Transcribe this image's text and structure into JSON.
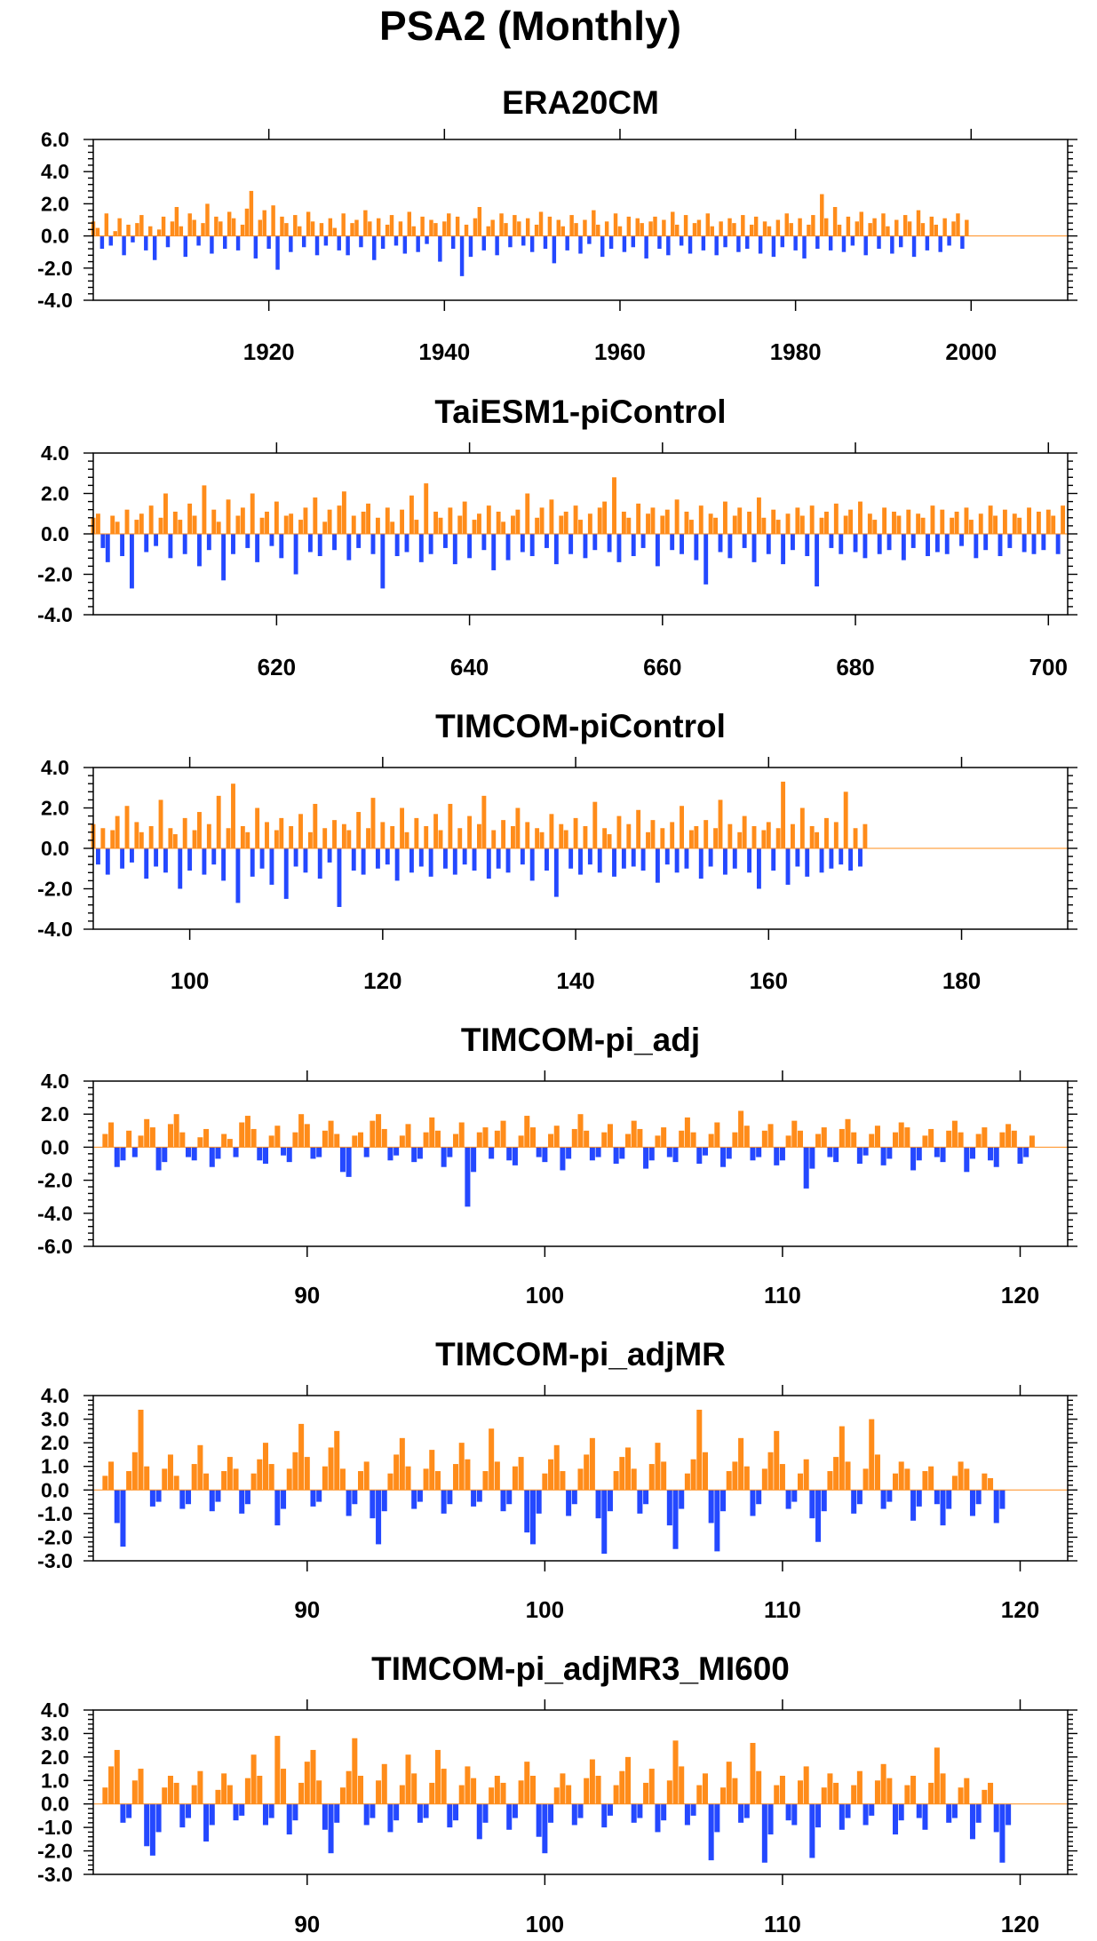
{
  "figure": {
    "title": "PSA2 (Monthly)"
  },
  "colors": {
    "positive": "#ff8c1a",
    "negative": "#2448ff",
    "axis": "#000000"
  },
  "chart_data": [
    {
      "type": "bar",
      "title": "ERA20CM",
      "xlabel": "",
      "ylabel": "",
      "xlim": [
        1900,
        2011
      ],
      "ylim": [
        -4.0,
        6.0
      ],
      "yticks": [
        -4.0,
        -2.0,
        0.0,
        2.0,
        4.0,
        6.0
      ],
      "ytick_labels": [
        "-4.0",
        "-2.0",
        "0.0",
        "2.0",
        "4.0",
        "6.0"
      ],
      "xticks": [
        1920,
        1940,
        1960,
        1980,
        2000
      ],
      "xtick_labels": [
        "1920",
        "1940",
        "1960",
        "1980",
        "2000"
      ],
      "positive_color": "#ff8c1a",
      "negative_color": "#2448ff",
      "x_start": 1900,
      "x_step": 0.5,
      "values": [
        0.9,
        0.5,
        -0.8,
        1.4,
        -0.6,
        0.3,
        1.1,
        -1.2,
        0.7,
        -0.4,
        0.8,
        1.3,
        -0.9,
        0.6,
        -1.5,
        0.4,
        1.2,
        -0.7,
        0.9,
        1.8,
        0.6,
        -1.3,
        1.4,
        1.0,
        -0.6,
        0.8,
        2.0,
        -1.1,
        1.2,
        0.9,
        -0.8,
        1.5,
        1.1,
        -0.9,
        0.7,
        1.7,
        2.8,
        -1.4,
        1.0,
        1.6,
        -0.8,
        1.9,
        -2.1,
        1.2,
        0.8,
        -1.0,
        1.3,
        0.6,
        -0.7,
        1.5,
        0.9,
        -1.2,
        0.8,
        -0.6,
        1.1,
        0.5,
        -0.9,
        1.4,
        -1.2,
        0.8,
        1.0,
        -0.7,
        1.6,
        0.9,
        -1.5,
        1.1,
        -0.8,
        0.7,
        1.3,
        -0.6,
        0.9,
        -1.1,
        1.5,
        0.6,
        -1.0,
        1.2,
        -0.5,
        1.0,
        0.8,
        -1.6,
        0.9,
        1.4,
        -0.8,
        1.2,
        -2.5,
        0.7,
        -1.3,
        1.1,
        1.8,
        -0.9,
        0.6,
        1.0,
        -1.2,
        1.4,
        0.8,
        -0.7,
        1.3,
        0.9,
        -0.6,
        1.1,
        -1.0,
        0.7,
        1.5,
        -0.8,
        1.2,
        -1.7,
        1.0,
        0.6,
        -0.9,
        1.3,
        0.8,
        -1.1,
        1.0,
        -0.5,
        1.6,
        0.7,
        -1.3,
        0.9,
        -0.8,
        1.4,
        0.6,
        -1.0,
        1.2,
        -0.7,
        1.1,
        0.8,
        -1.4,
        0.9,
        1.2,
        -0.8,
        1.0,
        -1.2,
        1.5,
        0.7,
        -0.6,
        1.3,
        -1.1,
        0.8,
        1.0,
        -0.9,
        1.4,
        0.6,
        -1.2,
        0.9,
        -0.7,
        1.1,
        0.8,
        -1.0,
        1.3,
        -0.8,
        0.7,
        1.2,
        -1.1,
        0.9,
        0.6,
        -1.3,
        1.0,
        -0.7,
        1.4,
        0.8,
        -0.9,
        1.1,
        -1.4,
        0.7,
        1.3,
        -0.8,
        2.6,
        1.1,
        -0.9,
        1.8,
        0.7,
        -1.0,
        1.2,
        -0.6,
        0.9,
        1.5,
        -1.2,
        0.8,
        1.1,
        -0.8,
        1.4,
        0.6,
        -1.1,
        1.0,
        -0.7,
        1.3,
        0.9,
        -1.3,
        1.6,
        0.8,
        -0.9,
        1.2,
        0.7,
        -1.0,
        1.1,
        -0.6,
        0.9,
        1.4,
        -0.8,
        1.0
      ]
    },
    {
      "type": "bar",
      "title": "TaiESM1-piControl",
      "xlabel": "",
      "ylabel": "",
      "xlim": [
        601,
        702
      ],
      "ylim": [
        -4.0,
        4.0
      ],
      "yticks": [
        -4.0,
        -2.0,
        0.0,
        2.0,
        4.0
      ],
      "ytick_labels": [
        "-4.0",
        "-2.0",
        "0.0",
        "2.0",
        "4.0"
      ],
      "xticks": [
        620,
        640,
        660,
        680,
        700
      ],
      "xtick_labels": [
        "620",
        "640",
        "660",
        "680",
        "700"
      ],
      "positive_color": "#ff8c1a",
      "negative_color": "#2448ff",
      "x_start": 601,
      "x_step": 0.5,
      "values": [
        0.8,
        1.0,
        -0.7,
        -1.4,
        0.9,
        0.6,
        -1.1,
        1.2,
        -2.7,
        0.7,
        1.0,
        -0.9,
        1.4,
        -0.6,
        0.8,
        2.0,
        -1.2,
        1.1,
        0.7,
        -1.0,
        1.5,
        0.9,
        -1.6,
        2.4,
        -0.8,
        1.2,
        0.6,
        -2.3,
        1.7,
        -1.0,
        0.9,
        1.3,
        -0.7,
        2.0,
        -1.4,
        0.8,
        1.1,
        -0.6,
        1.6,
        -1.2,
        0.9,
        1.0,
        -2.0,
        0.7,
        1.3,
        -0.9,
        1.8,
        -1.1,
        0.6,
        1.2,
        -0.8,
        1.4,
        2.1,
        -1.3,
        0.9,
        -0.7,
        1.1,
        1.5,
        -1.0,
        0.8,
        -2.7,
        1.3,
        0.6,
        -1.1,
        1.2,
        -0.9,
        1.9,
        0.7,
        -1.4,
        2.5,
        -1.0,
        1.1,
        0.8,
        -0.7,
        1.3,
        -1.5,
        0.9,
        1.6,
        -1.2,
        0.7,
        1.0,
        -0.8,
        1.4,
        -1.8,
        1.1,
        0.6,
        -1.3,
        0.9,
        1.2,
        -0.9,
        2.0,
        -1.1,
        0.8,
        1.3,
        -0.7,
        1.7,
        -1.5,
        0.9,
        1.1,
        -1.0,
        1.4,
        0.7,
        -1.2,
        1.0,
        -0.8,
        1.3,
        1.6,
        -0.9,
        2.8,
        -1.4,
        1.1,
        0.8,
        -1.1,
        1.5,
        -0.7,
        1.0,
        1.3,
        -1.6,
        0.9,
        1.2,
        -0.8,
        1.7,
        -1.0,
        1.1,
        0.7,
        -1.3,
        1.4,
        -2.5,
        1.0,
        0.8,
        -0.9,
        1.6,
        -1.2,
        0.9,
        1.3,
        -0.7,
        1.1,
        -1.4,
        1.8,
        0.8,
        -1.0,
        1.2,
        0.7,
        -1.5,
        1.0,
        -0.8,
        1.3,
        0.9,
        -1.1,
        1.4,
        -2.6,
        0.8,
        1.1,
        -0.7,
        1.5,
        -1.0,
        0.9,
        1.2,
        -0.9,
        1.6,
        -1.2,
        1.0,
        0.7,
        -1.0,
        1.3,
        -0.8,
        1.1,
        0.9,
        -1.3,
        1.2,
        -0.7,
        1.0,
        0.8,
        -1.1,
        1.4,
        -0.9,
        1.2,
        -1.0,
        0.8,
        1.1,
        -0.6,
        1.3,
        0.7,
        -1.2,
        1.0,
        -0.8,
        1.4,
        0.9,
        -1.1,
        1.2,
        -0.7,
        1.0,
        0.8,
        -0.9,
        1.3,
        -1.0,
        1.1,
        -0.8,
        1.2,
        0.9,
        -1.0,
        1.4
      ]
    },
    {
      "type": "bar",
      "title": "TIMCOM-piControl",
      "xlabel": "",
      "ylabel": "",
      "xlim": [
        90,
        191
      ],
      "ylim": [
        -4.0,
        4.0
      ],
      "yticks": [
        -4.0,
        -2.0,
        0.0,
        2.0,
        4.0
      ],
      "ytick_labels": [
        "-4.0",
        "-2.0",
        "0.0",
        "2.0",
        "4.0"
      ],
      "xticks": [
        100,
        120,
        140,
        160,
        180
      ],
      "xtick_labels": [
        "100",
        "120",
        "140",
        "160",
        "180"
      ],
      "positive_color": "#ff8c1a",
      "negative_color": "#2448ff",
      "x_start": 90,
      "x_step": 0.5,
      "values": [
        1.2,
        -0.8,
        1.0,
        -1.3,
        0.9,
        1.6,
        -1.0,
        2.1,
        -0.7,
        1.3,
        0.8,
        -1.5,
        1.1,
        -0.9,
        2.4,
        -1.2,
        1.0,
        0.7,
        -2.0,
        1.5,
        -1.1,
        0.9,
        1.8,
        -1.3,
        1.2,
        -0.8,
        2.6,
        -1.6,
        1.0,
        3.2,
        -2.7,
        1.1,
        0.8,
        -1.4,
        2.0,
        -1.0,
        1.3,
        -1.8,
        0.9,
        1.5,
        -2.5,
        1.1,
        -0.9,
        1.7,
        -1.2,
        0.8,
        2.2,
        -1.5,
        1.0,
        -0.7,
        1.4,
        -2.9,
        1.2,
        0.9,
        -1.1,
        1.8,
        -1.3,
        1.0,
        2.5,
        -1.0,
        1.3,
        -0.8,
        1.1,
        -1.6,
        2.0,
        0.8,
        -1.2,
        1.5,
        -0.9,
        1.1,
        -1.4,
        1.7,
        0.9,
        -1.0,
        2.2,
        -1.3,
        1.0,
        -0.8,
        1.6,
        -1.1,
        1.2,
        2.6,
        -1.5,
        0.9,
        -1.0,
        1.4,
        -1.2,
        1.1,
        2.0,
        -0.8,
        1.3,
        -1.6,
        1.0,
        0.8,
        -1.1,
        1.7,
        -2.4,
        1.2,
        0.9,
        -1.0,
        1.5,
        -1.3,
        1.1,
        -0.8,
        2.3,
        -1.2,
        1.0,
        0.7,
        -1.4,
        1.6,
        -1.0,
        1.2,
        -0.9,
        1.9,
        -1.1,
        0.8,
        1.4,
        -1.7,
        1.0,
        -0.8,
        1.3,
        -1.2,
        2.1,
        -1.0,
        0.9,
        1.1,
        -1.5,
        1.4,
        -0.9,
        1.0,
        2.4,
        -1.3,
        1.2,
        -1.0,
        0.8,
        1.6,
        -1.2,
        1.1,
        -2.0,
        0.9,
        1.3,
        -1.1,
        1.0,
        3.3,
        -1.8,
        1.2,
        -0.9,
        2.0,
        -1.4,
        1.1,
        0.8,
        -1.2,
        1.5,
        -1.0,
        1.3,
        -0.8,
        2.8,
        -1.1,
        1.0,
        -0.9,
        1.2
      ]
    },
    {
      "type": "bar",
      "title": "TIMCOM-pi_adj",
      "xlabel": "",
      "ylabel": "",
      "xlim": [
        81,
        122
      ],
      "ylim": [
        -6.0,
        4.0
      ],
      "yticks": [
        -6.0,
        -4.0,
        -2.0,
        0.0,
        2.0,
        4.0
      ],
      "ytick_labels": [
        "-6.0",
        "-4.0",
        "-2.0",
        "0.0",
        "2.0",
        "4.0"
      ],
      "xticks": [
        90,
        100,
        110,
        120
      ],
      "xtick_labels": [
        "90",
        "100",
        "110",
        "120"
      ],
      "positive_color": "#ff8c1a",
      "negative_color": "#2448ff",
      "x_start": 81.5,
      "x_step": 0.25,
      "values": [
        0.8,
        1.5,
        -1.2,
        -0.8,
        1.0,
        -0.6,
        0.7,
        1.7,
        1.2,
        -1.4,
        -0.9,
        1.4,
        2.0,
        0.9,
        -0.6,
        -0.8,
        0.6,
        1.1,
        -1.2,
        -0.7,
        0.8,
        0.5,
        -0.6,
        1.5,
        1.9,
        1.1,
        -0.8,
        -1.0,
        0.7,
        1.3,
        -0.5,
        -0.9,
        0.9,
        2.0,
        1.4,
        -0.7,
        -0.6,
        1.0,
        1.6,
        0.8,
        -1.5,
        -1.8,
        0.7,
        0.9,
        -0.6,
        1.6,
        2.0,
        1.1,
        -0.8,
        -0.5,
        0.7,
        1.4,
        -0.9,
        -0.7,
        0.9,
        1.8,
        1.0,
        -1.2,
        -0.6,
        0.8,
        1.5,
        -3.6,
        -1.5,
        0.9,
        1.2,
        -0.7,
        1.0,
        1.6,
        -0.8,
        -1.1,
        0.7,
        1.9,
        1.2,
        -0.6,
        -0.9,
        0.8,
        1.3,
        -1.4,
        -0.7,
        1.1,
        2.0,
        1.0,
        -0.8,
        -0.6,
        0.9,
        1.4,
        -1.0,
        -0.7,
        0.8,
        1.6,
        1.1,
        -1.3,
        -0.8,
        0.7,
        1.2,
        -0.6,
        -0.9,
        1.0,
        1.8,
        0.9,
        -1.0,
        -0.5,
        0.8,
        1.5,
        -1.2,
        -0.7,
        0.9,
        2.2,
        1.3,
        -0.8,
        -0.6,
        1.0,
        1.4,
        -1.1,
        -0.8,
        0.7,
        1.6,
        1.0,
        -2.5,
        -1.3,
        0.8,
        1.2,
        -0.6,
        -0.9,
        1.1,
        1.7,
        0.9,
        -1.0,
        -0.5,
        0.8,
        1.3,
        -1.1,
        -0.7,
        0.9,
        1.5,
        1.2,
        -1.4,
        -0.8,
        0.7,
        1.1,
        -0.6,
        -0.9,
        1.0,
        1.6,
        0.9,
        -1.5,
        -0.7,
        0.8,
        1.2,
        -0.8,
        -1.2,
        0.9,
        1.4,
        1.0,
        -1.0,
        -0.6,
        0.7
      ]
    },
    {
      "type": "bar",
      "title": "TIMCOM-pi_adjMR",
      "xlabel": "",
      "ylabel": "",
      "xlim": [
        81,
        122
      ],
      "ylim": [
        -3.0,
        4.0
      ],
      "yticks": [
        -3.0,
        -2.0,
        -1.0,
        0.0,
        1.0,
        2.0,
        3.0,
        4.0
      ],
      "ytick_labels": [
        "-3.0",
        "-2.0",
        "-1.0",
        "0.0",
        "1.0",
        "2.0",
        "3.0",
        "4.0"
      ],
      "xticks": [
        90,
        100,
        110,
        120
      ],
      "xtick_labels": [
        "90",
        "100",
        "110",
        "120"
      ],
      "positive_color": "#ff8c1a",
      "negative_color": "#2448ff",
      "x_start": 81.5,
      "x_step": 0.25,
      "values": [
        0.6,
        1.2,
        -1.4,
        -2.4,
        0.8,
        1.6,
        3.4,
        1.0,
        -0.7,
        -0.5,
        0.9,
        1.5,
        0.6,
        -0.8,
        -0.6,
        1.1,
        1.9,
        0.7,
        -0.9,
        -0.5,
        0.8,
        1.4,
        0.9,
        -1.0,
        -0.6,
        0.7,
        1.3,
        2.0,
        1.1,
        -1.5,
        -0.8,
        0.9,
        1.6,
        2.8,
        1.4,
        -0.7,
        -0.5,
        1.0,
        1.8,
        2.5,
        0.9,
        -1.1,
        -0.6,
        0.8,
        1.2,
        -1.2,
        -2.3,
        -0.9,
        0.7,
        1.5,
        2.2,
        1.0,
        -0.8,
        -0.5,
        0.9,
        1.7,
        0.8,
        -1.0,
        -0.6,
        1.1,
        2.0,
        1.3,
        -0.7,
        -0.5,
        0.8,
        2.6,
        1.2,
        -0.9,
        -0.6,
        1.0,
        1.4,
        -1.8,
        -2.3,
        -1.0,
        0.7,
        1.3,
        1.9,
        0.8,
        -1.1,
        -0.6,
        0.9,
        1.5,
        2.2,
        -1.2,
        -2.7,
        -0.9,
        0.8,
        1.4,
        1.8,
        0.9,
        -1.0,
        -0.6,
        1.1,
        2.0,
        1.2,
        -1.5,
        -2.5,
        -0.8,
        0.7,
        1.3,
        3.4,
        1.6,
        -1.4,
        -2.6,
        -0.9,
        0.8,
        1.2,
        2.2,
        1.0,
        -1.1,
        -0.6,
        0.9,
        1.6,
        2.5,
        1.1,
        -0.8,
        -0.5,
        0.7,
        1.3,
        -1.2,
        -2.2,
        -0.9,
        0.8,
        1.4,
        2.7,
        1.2,
        -1.0,
        -0.6,
        0.9,
        3.0,
        1.5,
        -0.8,
        -0.5,
        0.7,
        1.2,
        0.9,
        -1.3,
        -0.7,
        0.8,
        1.0,
        -0.6,
        -1.5,
        -0.8,
        0.6,
        1.2,
        0.9,
        -1.1,
        -0.6,
        0.7,
        0.5,
        -1.4,
        -0.8
      ]
    },
    {
      "type": "bar",
      "title": "TIMCOM-pi_adjMR3_MI600",
      "xlabel": "",
      "ylabel": "",
      "xlim": [
        81,
        122
      ],
      "ylim": [
        -3.0,
        4.0
      ],
      "yticks": [
        -3.0,
        -2.0,
        -1.0,
        0.0,
        1.0,
        2.0,
        3.0,
        4.0
      ],
      "ytick_labels": [
        "-3.0",
        "-2.0",
        "-1.0",
        "0.0",
        "1.0",
        "2.0",
        "3.0",
        "4.0"
      ],
      "xticks": [
        90,
        100,
        110,
        120
      ],
      "xtick_labels": [
        "90",
        "100",
        "110",
        "120"
      ],
      "positive_color": "#ff8c1a",
      "negative_color": "#2448ff",
      "x_start": 81.5,
      "x_step": 0.25,
      "values": [
        0.7,
        1.6,
        2.3,
        -0.8,
        -0.6,
        1.0,
        1.5,
        -1.8,
        -2.2,
        -1.2,
        0.7,
        1.2,
        0.9,
        -1.0,
        -0.6,
        0.8,
        1.4,
        -1.6,
        -0.9,
        0.6,
        1.3,
        0.8,
        -0.7,
        -0.5,
        1.1,
        2.1,
        1.2,
        -0.9,
        -0.6,
        2.9,
        1.5,
        -1.3,
        -0.7,
        0.9,
        1.8,
        2.3,
        1.0,
        -1.1,
        -2.1,
        -0.8,
        0.7,
        1.4,
        2.8,
        1.2,
        -0.9,
        -0.6,
        1.0,
        1.7,
        -1.2,
        -0.7,
        0.8,
        2.1,
        1.3,
        -0.8,
        -0.6,
        0.9,
        2.3,
        1.5,
        -1.0,
        -0.7,
        0.8,
        1.6,
        1.1,
        -1.5,
        -0.8,
        0.7,
        1.2,
        0.9,
        -1.1,
        -0.6,
        1.0,
        1.8,
        1.2,
        -1.4,
        -2.1,
        -0.8,
        0.7,
        1.3,
        0.8,
        -0.9,
        -0.6,
        1.1,
        1.9,
        1.2,
        -1.0,
        -0.5,
        0.8,
        1.4,
        2.0,
        -0.8,
        -0.6,
        0.9,
        1.5,
        -1.2,
        -0.7,
        1.0,
        2.7,
        1.6,
        -0.9,
        -0.5,
        0.8,
        1.3,
        -2.4,
        -1.2,
        0.7,
        1.8,
        1.1,
        -0.8,
        -0.6,
        2.6,
        1.4,
        -2.5,
        -1.3,
        0.8,
        1.2,
        -0.7,
        -0.9,
        1.0,
        1.6,
        -2.3,
        -1.0,
        0.7,
        1.3,
        0.9,
        -1.1,
        -0.6,
        0.8,
        1.4,
        -0.9,
        -0.5,
        1.0,
        1.7,
        1.1,
        -1.3,
        -0.7,
        0.8,
        1.2,
        -0.6,
        -1.1,
        0.9,
        2.4,
        1.3,
        -0.8,
        -0.6,
        0.7,
        1.1,
        -1.5,
        -0.8,
        0.6,
        0.9,
        -1.2,
        -2.5,
        -0.9
      ]
    }
  ]
}
